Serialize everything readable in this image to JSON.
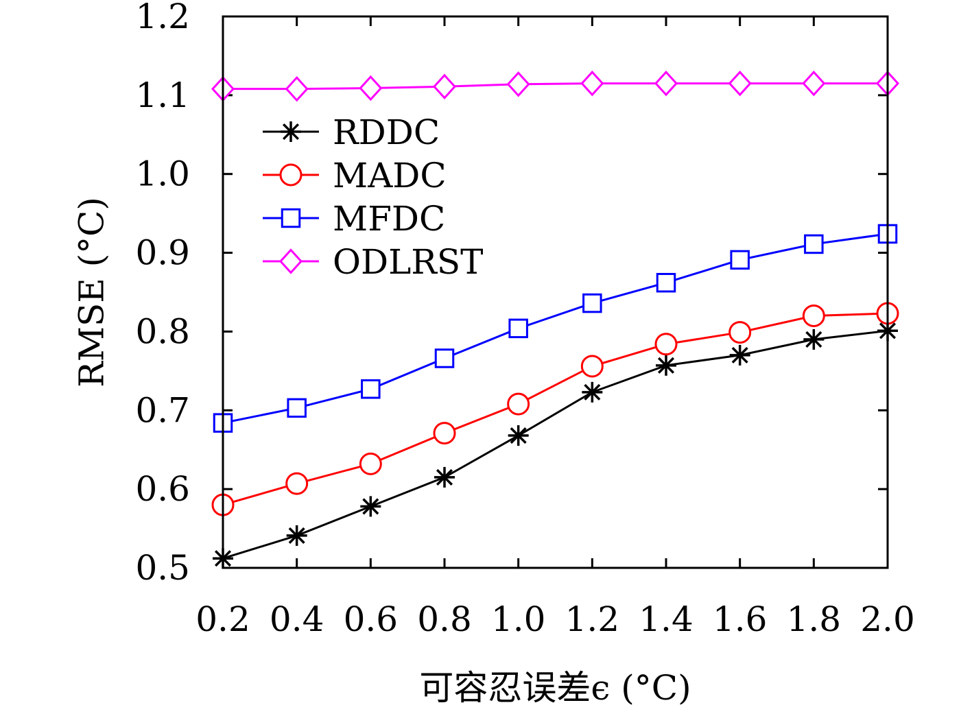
{
  "chart_data": {
    "type": "line",
    "xlabel": "可容忍误差ϵ (°C)",
    "ylabel": "RMSE (°C)",
    "x": [
      0.2,
      0.4,
      0.6,
      0.8,
      1.0,
      1.2,
      1.4,
      1.6,
      1.8,
      2.0
    ],
    "x_tick_labels": [
      "0.2",
      "0.4",
      "0.6",
      "0.8",
      "1.0",
      "1.2",
      "1.4",
      "1.6",
      "1.8",
      "2.0"
    ],
    "y_tick_labels": [
      "0.5",
      "0.6",
      "0.7",
      "0.8",
      "0.9",
      "1.0",
      "1.1",
      "1.2"
    ],
    "ylim": [
      0.5,
      1.2
    ],
    "xlim": [
      0.2,
      2.0
    ],
    "grid": false,
    "legend_position": "upper-left",
    "series": [
      {
        "name": "RDDC",
        "color": "#000000",
        "marker": "star",
        "values": [
          0.512,
          0.541,
          0.578,
          0.615,
          0.668,
          0.723,
          0.757,
          0.77,
          0.79,
          0.801
        ]
      },
      {
        "name": "MADC",
        "color": "#ff0000",
        "marker": "circle",
        "values": [
          0.58,
          0.607,
          0.632,
          0.671,
          0.708,
          0.756,
          0.784,
          0.799,
          0.82,
          0.823
        ]
      },
      {
        "name": "MFDC",
        "color": "#0000ff",
        "marker": "square",
        "values": [
          0.684,
          0.703,
          0.727,
          0.766,
          0.804,
          0.836,
          0.862,
          0.891,
          0.911,
          0.924
        ]
      },
      {
        "name": "ODLRST",
        "color": "#ff00ff",
        "marker": "diamond",
        "values": [
          1.108,
          1.108,
          1.109,
          1.111,
          1.114,
          1.115,
          1.115,
          1.115,
          1.115,
          1.115
        ]
      }
    ]
  }
}
